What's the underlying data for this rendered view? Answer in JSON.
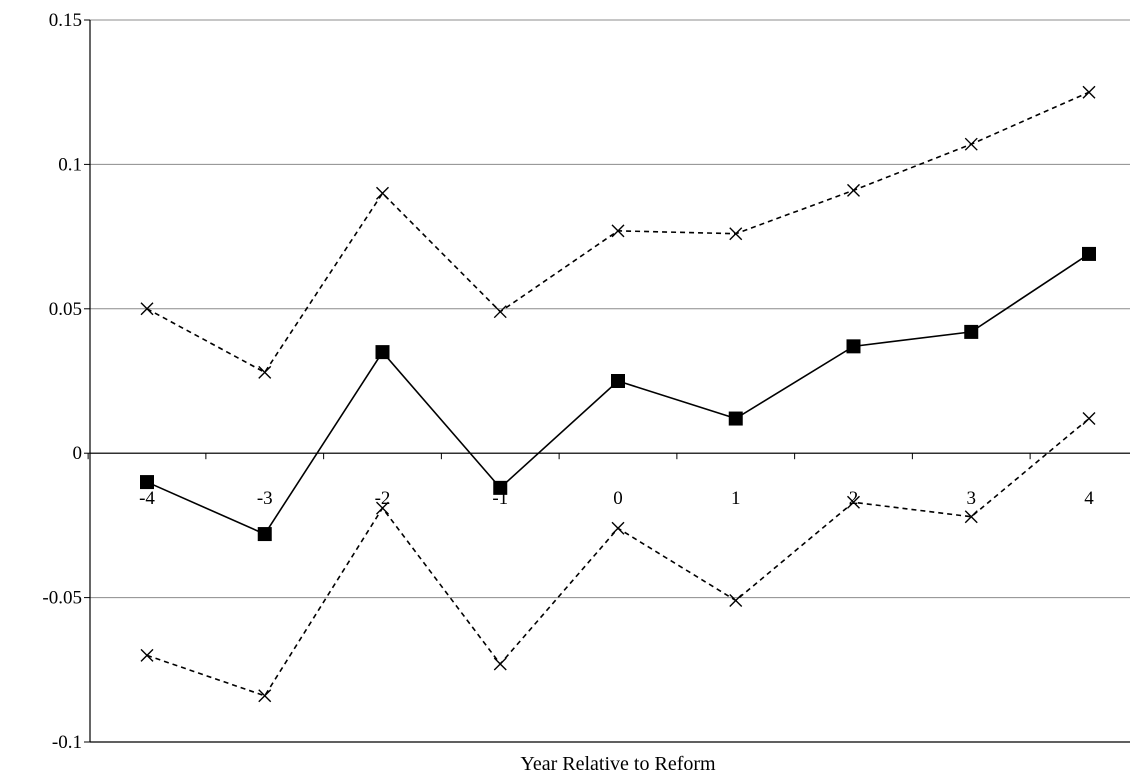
{
  "chart_data": {
    "type": "line",
    "title": "",
    "xlabel": "Year Relative to Reform",
    "ylabel": "",
    "x": [
      -4,
      -3,
      -2,
      -1,
      0,
      1,
      2,
      3,
      4
    ],
    "ylim": [
      -0.1,
      0.15
    ],
    "yticks": [
      0.15,
      0.1,
      0.05,
      0,
      -0.05,
      -0.1
    ],
    "ytick_labels": [
      "0.15",
      "0.1",
      "0.05",
      "0",
      "-0.05",
      "-0.1"
    ],
    "xtick_labels": [
      "-4",
      "-3",
      "-2",
      "-1",
      "0",
      "1",
      "2",
      "3",
      "4"
    ],
    "grid": "horizontal",
    "legend": "none",
    "series": [
      {
        "style": "solid",
        "marker": "square",
        "color": "#000000",
        "values": [
          -0.01,
          -0.028,
          0.035,
          -0.012,
          0.025,
          0.012,
          0.037,
          0.042,
          0.069
        ]
      },
      {
        "style": "dashed",
        "marker": "x",
        "color": "#000000",
        "values": [
          0.05,
          0.028,
          0.09,
          0.049,
          0.077,
          0.076,
          0.091,
          0.107,
          0.125
        ]
      },
      {
        "style": "dashed",
        "marker": "x",
        "color": "#000000",
        "values": [
          -0.07,
          -0.084,
          -0.019,
          -0.073,
          -0.026,
          -0.051,
          -0.017,
          -0.022,
          0.012
        ]
      }
    ]
  }
}
